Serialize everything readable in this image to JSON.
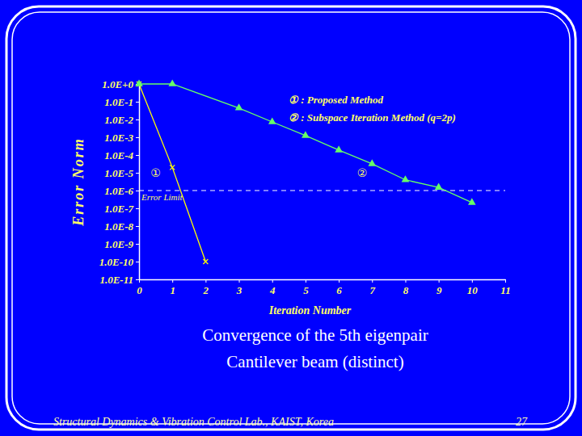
{
  "chart_data": {
    "type": "line",
    "title": "Convergence of the 5th eigenpair",
    "subtitle": "Cantilever beam (distinct)",
    "footer": "Structural Dynamics & Vibration Control Lab., KAIST, Korea",
    "page": "27",
    "x_label": "Iteration Number",
    "y_label": "Error Norm",
    "log": "y",
    "legend": "top-right",
    "xlim": [
      0,
      11
    ],
    "xticks": [
      0,
      1,
      2,
      3,
      4,
      5,
      6,
      7,
      8,
      9,
      10,
      11
    ],
    "ylim": [
      1e-11,
      1
    ],
    "yticks": [
      {
        "value": 1,
        "label": "1.0E+0"
      },
      {
        "value": 0.1,
        "label": "1.0E-1"
      },
      {
        "value": 0.01,
        "label": "1.0E-2"
      },
      {
        "value": 0.001,
        "label": "1.0E-3"
      },
      {
        "value": 0.0001,
        "label": "1.0E-4"
      },
      {
        "value": 1e-05,
        "label": "1.0E-5"
      },
      {
        "value": 1e-06,
        "label": "1.0E-6"
      },
      {
        "value": 1e-07,
        "label": "1.0E-7"
      },
      {
        "value": 1e-08,
        "label": "1.0E-8"
      },
      {
        "value": 1e-09,
        "label": "1.0E-9"
      },
      {
        "value": 1e-10,
        "label": "1.0E-10"
      },
      {
        "value": 1e-11,
        "label": "1.0E-11"
      }
    ],
    "series": [
      {
        "name": "① : Proposed Method",
        "color": "#ffff00",
        "marker": "x",
        "x": [
          0,
          1,
          2
        ],
        "values": [
          1,
          2e-05,
          1e-10
        ]
      },
      {
        "name": "② : Subspace Iteration Method (q=2p)",
        "color": "#66ff66",
        "marker": "triangle",
        "x": [
          0,
          1,
          3,
          4,
          5,
          6,
          7,
          8,
          9,
          10
        ],
        "values": [
          1,
          1,
          0.044,
          0.0073,
          0.00125,
          0.00019,
          3.2e-05,
          4e-06,
          1.5e-06,
          2.1e-07
        ]
      }
    ],
    "reference_line": {
      "value": 1e-06,
      "label": "Error Limit",
      "line_style": "dashed"
    },
    "annotations": [
      {
        "text": "①",
        "x": 0.5,
        "y": 1e-05
      },
      {
        "text": "②",
        "x": 6.7,
        "y": 1e-05
      }
    ]
  }
}
